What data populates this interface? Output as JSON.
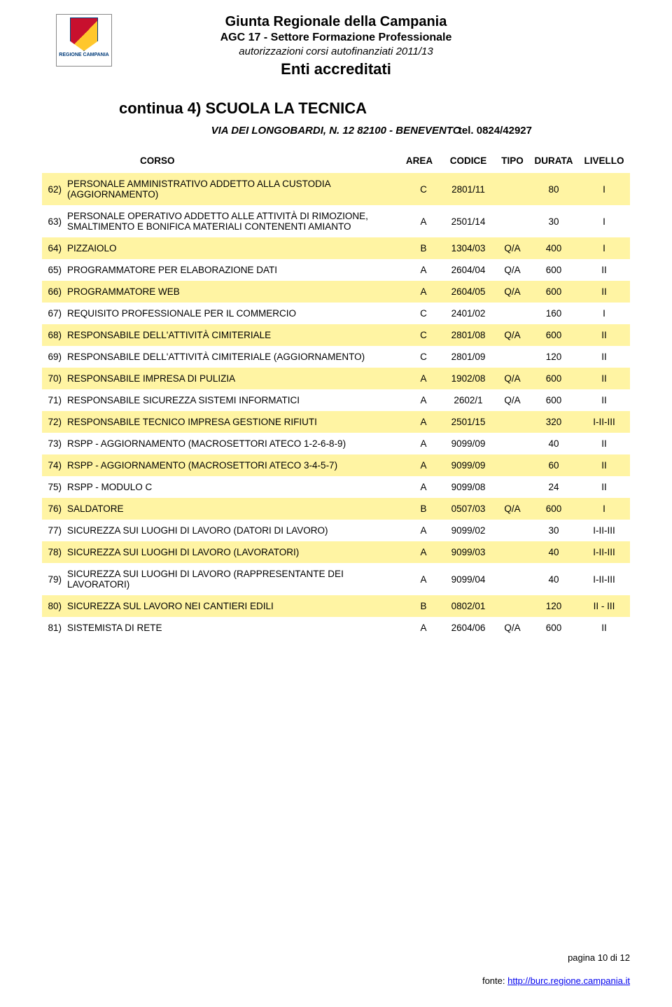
{
  "logo_caption": "REGIONE CAMPANIA",
  "header": {
    "line1": "Giunta Regionale della Campania",
    "line2": "AGC 17 - Settore Formazione Professionale",
    "line3": "autorizzazioni corsi autofinanziati 2011/13",
    "line4": "Enti accreditati"
  },
  "section_title": "continua 4)  SCUOLA LA TECNICA",
  "address": "VIA DEI LONGOBARDI, N. 12 82100 - BENEVENTO",
  "tel": "tel. 0824/42927",
  "col_headers": {
    "corso": "CORSO",
    "area": "AREA",
    "codice": "CODICE",
    "tipo": "TIPO",
    "durata": "DURATA",
    "livello": "LIVELLO"
  },
  "rows": [
    {
      "n": "62)",
      "course": "PERSONALE AMMINISTRATIVO ADDETTO ALLA CUSTODIA (AGGIORNAMENTO)",
      "area": "C",
      "code": "2801/11",
      "tipo": "",
      "dur": "80",
      "liv": "I",
      "hl": true,
      "tall": false
    },
    {
      "n": "63)",
      "course": "PERSONALE OPERATIVO ADDETTO ALLE ATTIVITÀ DI RIMOZIONE, SMALTIMENTO E BONIFICA MATERIALI CONTENENTI AMIANTO",
      "area": "A",
      "code": "2501/14",
      "tipo": "",
      "dur": "30",
      "liv": "I",
      "hl": false,
      "tall": true
    },
    {
      "n": "64)",
      "course": "PIZZAIOLO",
      "area": "B",
      "code": "1304/03",
      "tipo": "Q/A",
      "dur": "400",
      "liv": "I",
      "hl": true,
      "tall": false
    },
    {
      "n": "65)",
      "course": "PROGRAMMATORE PER ELABORAZIONE DATI",
      "area": "A",
      "code": "2604/04",
      "tipo": "Q/A",
      "dur": "600",
      "liv": "II",
      "hl": false,
      "tall": false
    },
    {
      "n": "66)",
      "course": "PROGRAMMATORE WEB",
      "area": "A",
      "code": "2604/05",
      "tipo": "Q/A",
      "dur": "600",
      "liv": "II",
      "hl": true,
      "tall": false
    },
    {
      "n": "67)",
      "course": "REQUISITO PROFESSIONALE PER IL COMMERCIO",
      "area": "C",
      "code": "2401/02",
      "tipo": "",
      "dur": "160",
      "liv": "I",
      "hl": false,
      "tall": false
    },
    {
      "n": "68)",
      "course": "RESPONSABILE DELL'ATTIVITÀ CIMITERIALE",
      "area": "C",
      "code": "2801/08",
      "tipo": "Q/A",
      "dur": "600",
      "liv": "II",
      "hl": true,
      "tall": false
    },
    {
      "n": "69)",
      "course": "RESPONSABILE DELL'ATTIVITÀ CIMITERIALE (AGGIORNAMENTO)",
      "area": "C",
      "code": "2801/09",
      "tipo": "",
      "dur": "120",
      "liv": "II",
      "hl": false,
      "tall": false
    },
    {
      "n": "70)",
      "course": "RESPONSABILE IMPRESA DI PULIZIA",
      "area": "A",
      "code": "1902/08",
      "tipo": "Q/A",
      "dur": "600",
      "liv": "II",
      "hl": true,
      "tall": false
    },
    {
      "n": "71)",
      "course": "RESPONSABILE SICUREZZA SISTEMI INFORMATICI",
      "area": "A",
      "code": "2602/1",
      "tipo": "Q/A",
      "dur": "600",
      "liv": "II",
      "hl": false,
      "tall": false
    },
    {
      "n": "72)",
      "course": "RESPONSABILE TECNICO IMPRESA GESTIONE RIFIUTI",
      "area": "A",
      "code": "2501/15",
      "tipo": "",
      "dur": "320",
      "liv": "I-II-III",
      "hl": true,
      "tall": false
    },
    {
      "n": "73)",
      "course": "RSPP - AGGIORNAMENTO (MACROSETTORI ATECO 1-2-6-8-9)",
      "area": "A",
      "code": "9099/09",
      "tipo": "",
      "dur": "40",
      "liv": "II",
      "hl": false,
      "tall": true
    },
    {
      "n": "74)",
      "course": "RSPP - AGGIORNAMENTO (MACROSETTORI ATECO 3-4-5-7)",
      "area": "A",
      "code": "9099/09",
      "tipo": "",
      "dur": "60",
      "liv": "II",
      "hl": true,
      "tall": true
    },
    {
      "n": "75)",
      "course": "RSPP - MODULO C",
      "area": "A",
      "code": "9099/08",
      "tipo": "",
      "dur": "24",
      "liv": "II",
      "hl": false,
      "tall": true
    },
    {
      "n": "76)",
      "course": "SALDATORE",
      "area": "B",
      "code": "0507/03",
      "tipo": "Q/A",
      "dur": "600",
      "liv": "I",
      "hl": true,
      "tall": false
    },
    {
      "n": "77)",
      "course": "SICUREZZA SUI LUOGHI DI LAVORO (DATORI DI LAVORO)",
      "area": "A",
      "code": "9099/02",
      "tipo": "",
      "dur": "30",
      "liv": "I-II-III",
      "hl": false,
      "tall": false
    },
    {
      "n": "78)",
      "course": "SICUREZZA SUI LUOGHI DI LAVORO (LAVORATORI)",
      "area": "A",
      "code": "9099/03",
      "tipo": "",
      "dur": "40",
      "liv": "I-II-III",
      "hl": true,
      "tall": false
    },
    {
      "n": "79)",
      "course": "SICUREZZA SUI LUOGHI DI LAVORO (RAPPRESENTANTE DEI LAVORATORI)",
      "area": "A",
      "code": "9099/04",
      "tipo": "",
      "dur": "40",
      "liv": "I-II-III",
      "hl": false,
      "tall": false
    },
    {
      "n": "80)",
      "course": "SICUREZZA SUL LAVORO NEI CANTIERI EDILI",
      "area": "B",
      "code": "0802/01",
      "tipo": "",
      "dur": "120",
      "liv": "II - III",
      "hl": true,
      "tall": false
    },
    {
      "n": "81)",
      "course": "SISTEMISTA DI RETE",
      "area": "A",
      "code": "2604/06",
      "tipo": "Q/A",
      "dur": "600",
      "liv": "II",
      "hl": false,
      "tall": false
    }
  ],
  "footer": {
    "page": "pagina 10 di 12",
    "source_label": "fonte: ",
    "source_url": "http://burc.regione.campania.it"
  },
  "colors": {
    "highlight": "#fff4a3",
    "link": "#0000ee"
  }
}
